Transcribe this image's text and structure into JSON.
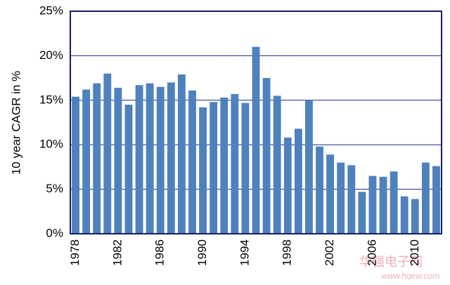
{
  "chart_data": {
    "type": "bar",
    "y_label": "10 year CAGR in %",
    "categories": [
      "1978",
      null,
      null,
      null,
      "1982",
      null,
      null,
      null,
      "1986",
      null,
      null,
      null,
      "1990",
      null,
      null,
      null,
      "1994",
      null,
      null,
      null,
      "1998",
      null,
      null,
      null,
      "2002",
      null,
      null,
      null,
      "2006",
      null,
      null,
      null,
      "2010",
      null,
      null
    ],
    "values": [
      15.4,
      16.2,
      16.9,
      18.0,
      16.4,
      14.5,
      16.7,
      16.9,
      16.5,
      17.0,
      17.9,
      16.1,
      14.2,
      14.8,
      15.3,
      15.7,
      14.7,
      21.0,
      17.5,
      15.5,
      10.8,
      11.8,
      15.0,
      9.8,
      8.9,
      8.0,
      7.7,
      4.7,
      6.5,
      6.4,
      7.0,
      4.2,
      3.9,
      8.0,
      7.6
    ],
    "color": "#4f81bd",
    "ylim": [
      0,
      25
    ],
    "yticks": [
      {
        "value": 0,
        "label": "0%"
      },
      {
        "value": 5,
        "label": "5%"
      },
      {
        "value": 10,
        "label": "10%"
      },
      {
        "value": 15,
        "label": "15%"
      },
      {
        "value": 20,
        "label": "20%"
      },
      {
        "value": 25,
        "label": "25%"
      }
    ],
    "grid": true,
    "watermark": "华强电子网",
    "watermark_url": "www.hqew.com"
  }
}
